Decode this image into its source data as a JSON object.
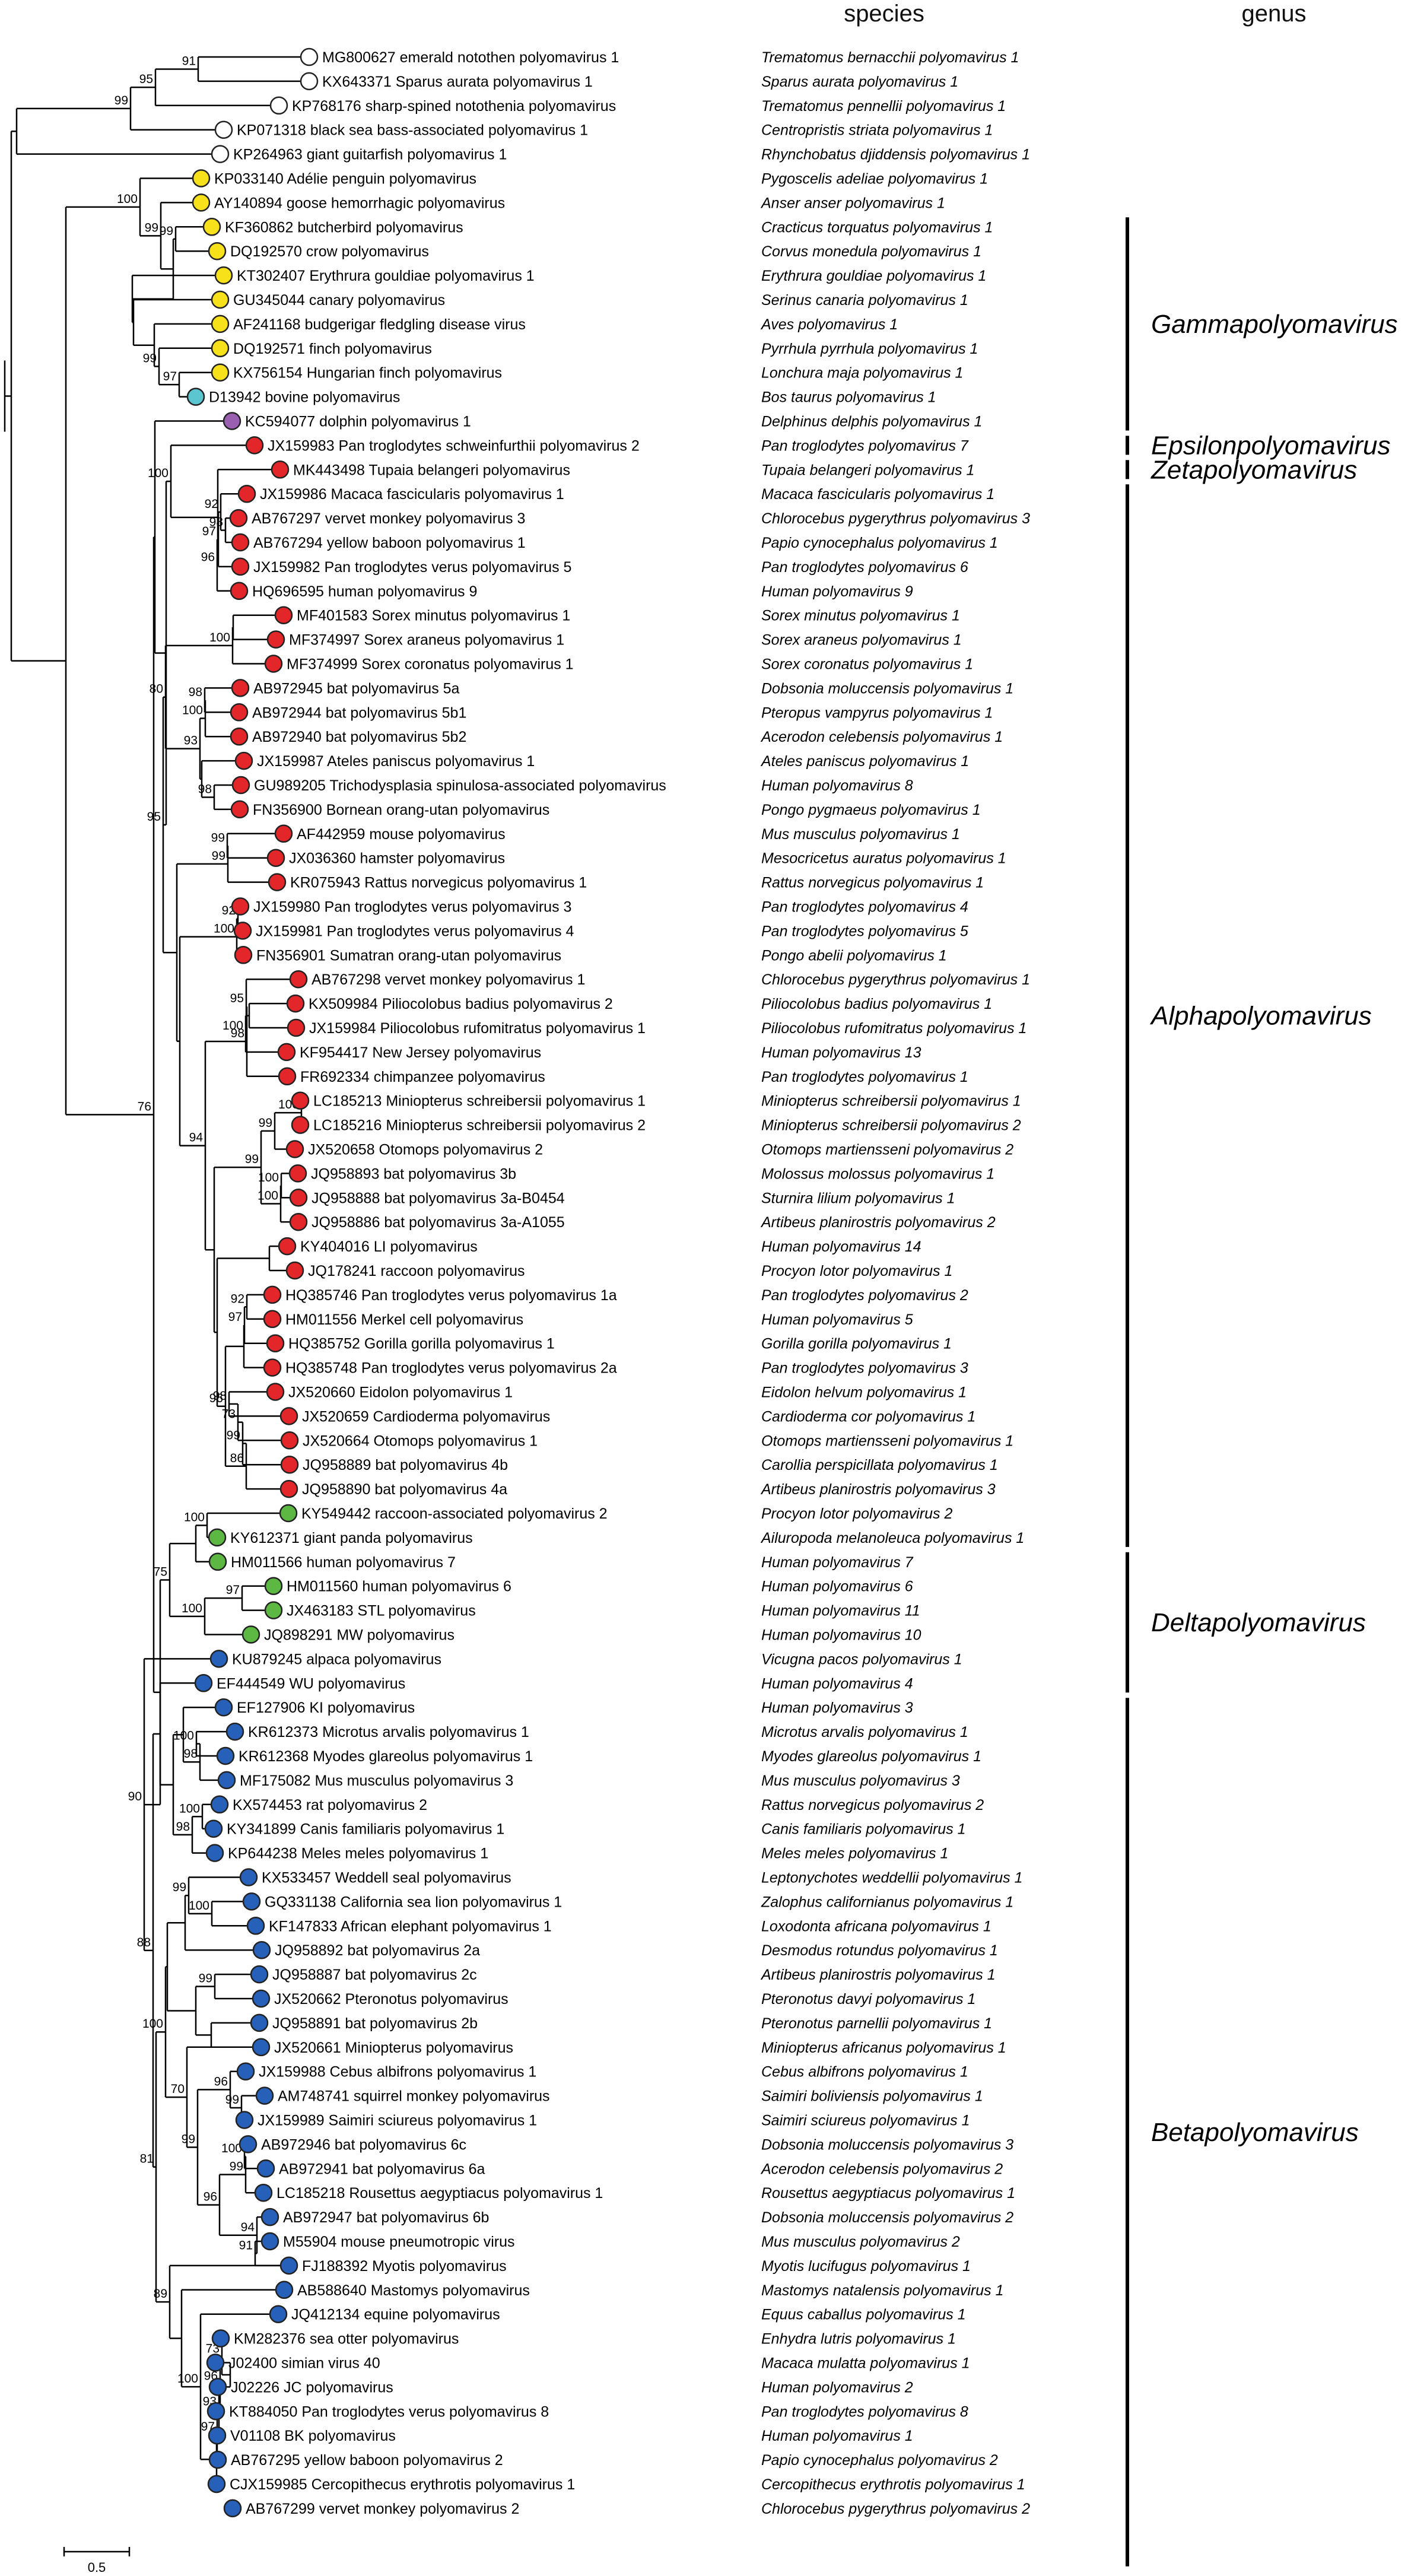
{
  "header": {
    "species": "species",
    "genus": "genus"
  },
  "colors": {
    "white": "#ffffff",
    "yellow": "#f7e11a",
    "cyan": "#5cc6d0",
    "purple": "#9a5fb0",
    "red": "#e3262a",
    "green": "#5cb842",
    "blue": "#2760b8"
  },
  "scale_bar": {
    "label": "0.5"
  },
  "genera": [
    {
      "name": "Gammapolyomavirus",
      "from": 7,
      "to": 15
    },
    {
      "name": "Epsilonpolyomavirus",
      "from": 16,
      "to": 16
    },
    {
      "name": "Zetapolyomavirus",
      "from": 17,
      "to": 17
    },
    {
      "name": "Alphapolyomavirus",
      "from": 18,
      "to": 61
    },
    {
      "name": "Deltapolyomavirus",
      "from": 62,
      "to": 67
    },
    {
      "name": "Betapolyomavirus",
      "from": 68,
      "to": 103
    }
  ],
  "taxa": [
    {
      "label": "MG800627 emerald notothen polyomavirus 1",
      "species": "Trematomus bernacchii polyomavirus 1",
      "color": "white"
    },
    {
      "label": "KX643371 Sparus aurata polyomavirus 1",
      "species": "Sparus aurata polyomavirus 1",
      "color": "white"
    },
    {
      "label": "KP768176 sharp-spined notothenia polyomavirus",
      "species": "Trematomus pennellii polyomavirus 1",
      "color": "white"
    },
    {
      "label": "KP071318 black sea bass-associated polyomavirus 1",
      "species": "Centropristis striata polyomavirus 1",
      "color": "white"
    },
    {
      "label": "KP264963 giant guitarfish polyomavirus 1",
      "species": "Rhynchobatus djiddensis polyomavirus 1",
      "color": "white"
    },
    {
      "label": "KP033140 Adélie penguin polyomavirus",
      "species": "Pygoscelis adeliae polyomavirus 1",
      "color": "yellow"
    },
    {
      "label": "AY140894 goose hemorrhagic polyomavirus",
      "species": "Anser anser polyomavirus 1",
      "color": "yellow"
    },
    {
      "label": "KF360862 butcherbird polyomavirus",
      "species": "Cracticus torquatus polyomavirus 1",
      "color": "yellow"
    },
    {
      "label": "DQ192570 crow polyomavirus",
      "species": "Corvus monedula polyomavirus 1",
      "color": "yellow"
    },
    {
      "label": "KT302407 Erythrura gouldiae polyomavirus 1",
      "species": "Erythrura gouldiae polyomavirus 1",
      "color": "yellow"
    },
    {
      "label": "GU345044 canary polyomavirus",
      "species": "Serinus canaria polyomavirus 1",
      "color": "yellow"
    },
    {
      "label": "AF241168 budgerigar fledgling disease virus",
      "species": "Aves polyomavirus 1",
      "color": "yellow"
    },
    {
      "label": "DQ192571 finch polyomavirus",
      "species": "Pyrrhula pyrrhula polyomavirus 1",
      "color": "yellow"
    },
    {
      "label": "KX756154 Hungarian finch polyomavirus",
      "species": "Lonchura maja polyomavirus 1",
      "color": "yellow"
    },
    {
      "label": "D13942 bovine polyomavirus",
      "species": "Bos taurus polyomavirus 1",
      "color": "cyan"
    },
    {
      "label": "KC594077 dolphin polyomavirus 1",
      "species": "Delphinus delphis polyomavirus 1",
      "color": "purple"
    },
    {
      "label": "JX159983 Pan troglodytes schweinfurthii polyomavirus 2",
      "species": "Pan troglodytes polyomavirus 7",
      "color": "red"
    },
    {
      "label": "MK443498 Tupaia belangeri polyomavirus",
      "species": "Tupaia belangeri polyomavirus 1",
      "color": "red"
    },
    {
      "label": "JX159986 Macaca fascicularis polyomavirus 1",
      "species": "Macaca fascicularis polyomavirus 1",
      "color": "red"
    },
    {
      "label": "AB767297 vervet monkey polyomavirus 3",
      "species": "Chlorocebus pygerythrus polyomavirus 3",
      "color": "red"
    },
    {
      "label": "AB767294 yellow baboon polyomavirus 1",
      "species": "Papio cynocephalus polyomavirus 1",
      "color": "red"
    },
    {
      "label": "JX159982 Pan troglodytes verus polyomavirus 5",
      "species": "Pan troglodytes polyomavirus 6",
      "color": "red"
    },
    {
      "label": "HQ696595 human polyomavirus 9",
      "species": "Human polyomavirus 9",
      "color": "red"
    },
    {
      "label": "MF401583 Sorex minutus polyomavirus 1",
      "species": "Sorex minutus polyomavirus 1",
      "color": "red"
    },
    {
      "label": "MF374997 Sorex araneus polyomavirus 1",
      "species": "Sorex araneus polyomavirus 1",
      "color": "red"
    },
    {
      "label": "MF374999 Sorex coronatus polyomavirus 1",
      "species": "Sorex coronatus polyomavirus 1",
      "color": "red"
    },
    {
      "label": "AB972945 bat polyomavirus 5a",
      "species": "Dobsonia moluccensis polyomavirus 1",
      "color": "red"
    },
    {
      "label": "AB972944 bat polyomavirus 5b1",
      "species": "Pteropus vampyrus polyomavirus 1",
      "color": "red"
    },
    {
      "label": "AB972940 bat polyomavirus 5b2",
      "species": "Acerodon celebensis polyomavirus 1",
      "color": "red"
    },
    {
      "label": "JX159987 Ateles paniscus polyomavirus 1",
      "species": "Ateles paniscus polyomavirus 1",
      "color": "red"
    },
    {
      "label": "GU989205 Trichodysplasia spinulosa-associated polyomavirus",
      "species": "Human polyomavirus 8",
      "color": "red"
    },
    {
      "label": "FN356900 Bornean orang-utan polyomavirus",
      "species": "Pongo pygmaeus polyomavirus 1",
      "color": "red"
    },
    {
      "label": "AF442959 mouse polyomavirus",
      "species": "Mus musculus polyomavirus 1",
      "color": "red"
    },
    {
      "label": "JX036360 hamster polyomavirus",
      "species": "Mesocricetus auratus polyomavirus 1",
      "color": "red"
    },
    {
      "label": "KR075943 Rattus norvegicus polyomavirus 1",
      "species": "Rattus norvegicus polyomavirus 1",
      "color": "red"
    },
    {
      "label": "JX159980 Pan troglodytes verus polyomavirus 3",
      "species": "Pan troglodytes polyomavirus 4",
      "color": "red"
    },
    {
      "label": "JX159981 Pan troglodytes verus polyomavirus 4",
      "species": "Pan troglodytes polyomavirus 5",
      "color": "red"
    },
    {
      "label": "FN356901 Sumatran orang-utan polyomavirus",
      "species": "Pongo abelii polyomavirus 1",
      "color": "red"
    },
    {
      "label": "AB767298 vervet monkey polyomavirus 1",
      "species": "Chlorocebus pygerythrus polyomavirus 1",
      "color": "red"
    },
    {
      "label": "KX509984 Piliocolobus badius polyomavirus 2",
      "species": "Piliocolobus badius polyomavirus 1",
      "color": "red"
    },
    {
      "label": "JX159984 Piliocolobus rufomitratus polyomavirus 1",
      "species": "Piliocolobus rufomitratus polyomavirus 1",
      "color": "red"
    },
    {
      "label": "KF954417 New Jersey polyomavirus",
      "species": "Human polyomavirus 13",
      "color": "red"
    },
    {
      "label": "FR692334 chimpanzee polyomavirus",
      "species": "Pan troglodytes polyomavirus 1",
      "color": "red"
    },
    {
      "label": "LC185213 Miniopterus schreibersii polyomavirus 1",
      "species": "Miniopterus schreibersii polyomavirus 1",
      "color": "red"
    },
    {
      "label": "LC185216 Miniopterus schreibersii polyomavirus 2",
      "species": "Miniopterus schreibersii polyomavirus 2",
      "color": "red"
    },
    {
      "label": "JX520658 Otomops polyomavirus 2",
      "species": "Otomops martiensseni polyomavirus 2",
      "color": "red"
    },
    {
      "label": "JQ958893 bat polyomavirus 3b",
      "species": "Molossus molossus polyomavirus 1",
      "color": "red"
    },
    {
      "label": "JQ958888 bat polyomavirus 3a-B0454",
      "species": "Sturnira lilium polyomavirus 1",
      "color": "red"
    },
    {
      "label": "JQ958886 bat polyomavirus 3a-A1055",
      "species": "Artibeus planirostris polyomavirus 2",
      "color": "red"
    },
    {
      "label": "KY404016 LI polyomavirus",
      "species": "Human polyomavirus 14",
      "color": "red"
    },
    {
      "label": "JQ178241 raccoon polyomavirus",
      "species": "Procyon lotor polyomavirus 1",
      "color": "red"
    },
    {
      "label": "HQ385746 Pan troglodytes verus polyomavirus 1a",
      "species": "Pan troglodytes polyomavirus 2",
      "color": "red"
    },
    {
      "label": "HM011556 Merkel cell polyomavirus",
      "species": "Human polyomavirus 5",
      "color": "red"
    },
    {
      "label": "HQ385752 Gorilla gorilla polyomavirus 1",
      "species": "Gorilla gorilla polyomavirus 1",
      "color": "red"
    },
    {
      "label": "HQ385748 Pan troglodytes verus polyomavirus 2a",
      "species": "Pan troglodytes polyomavirus 3",
      "color": "red"
    },
    {
      "label": "JX520660 Eidolon polyomavirus 1",
      "species": "Eidolon helvum polyomavirus 1",
      "color": "red"
    },
    {
      "label": "JX520659 Cardioderma polyomavirus",
      "species": "Cardioderma cor polyomavirus 1",
      "color": "red"
    },
    {
      "label": "JX520664 Otomops polyomavirus 1",
      "species": "Otomops martiensseni polyomavirus 1",
      "color": "red"
    },
    {
      "label": "JQ958889 bat polyomavirus 4b",
      "species": "Carollia perspicillata polyomavirus 1",
      "color": "red"
    },
    {
      "label": "JQ958890 bat polyomavirus 4a",
      "species": "Artibeus planirostris polyomavirus 3",
      "color": "red"
    },
    {
      "label": "KY549442 raccoon-associated polyomavirus 2",
      "species": "Procyon lotor polyomavirus 2",
      "color": "green"
    },
    {
      "label": "KY612371 giant panda polyomavirus",
      "species": "Ailuropoda melanoleuca polyomavirus 1",
      "color": "green"
    },
    {
      "label": "HM011566 human polyomavirus 7",
      "species": "Human polyomavirus 7",
      "color": "green"
    },
    {
      "label": "HM011560 human polyomavirus 6",
      "species": "Human polyomavirus 6",
      "color": "green"
    },
    {
      "label": "JX463183 STL polyomavirus",
      "species": "Human polyomavirus 11",
      "color": "green"
    },
    {
      "label": "JQ898291 MW polyomavirus",
      "species": "Human polyomavirus 10",
      "color": "green"
    },
    {
      "label": "KU879245 alpaca polyomavirus",
      "species": "Vicugna pacos polyomavirus 1",
      "color": "blue"
    },
    {
      "label": "EF444549 WU polyomavirus",
      "species": "Human polyomavirus 4",
      "color": "blue"
    },
    {
      "label": "EF127906 KI polyomavirus",
      "species": "Human polyomavirus 3",
      "color": "blue"
    },
    {
      "label": "KR612373 Microtus arvalis polyomavirus 1",
      "species": "Microtus arvalis polyomavirus 1",
      "color": "blue"
    },
    {
      "label": "KR612368 Myodes glareolus polyomavirus 1",
      "species": "Myodes glareolus polyomavirus 1",
      "color": "blue"
    },
    {
      "label": "MF175082 Mus musculus polyomavirus 3",
      "species": "Mus musculus polyomavirus 3",
      "color": "blue"
    },
    {
      "label": "KX574453 rat polyomavirus 2",
      "species": "Rattus norvegicus polyomavirus 2",
      "color": "blue"
    },
    {
      "label": "KY341899 Canis familiaris polyomavirus 1",
      "species": "Canis familiaris polyomavirus 1",
      "color": "blue"
    },
    {
      "label": "KP644238 Meles meles polyomavirus 1",
      "species": "Meles meles polyomavirus 1",
      "color": "blue"
    },
    {
      "label": "KX533457 Weddell seal polyomavirus",
      "species": "Leptonychotes weddellii polyomavirus 1",
      "color": "blue"
    },
    {
      "label": "GQ331138 California sea lion polyomavirus 1",
      "species": "Zalophus californianus polyomavirus 1",
      "color": "blue"
    },
    {
      "label": "KF147833 African elephant polyomavirus 1",
      "species": "Loxodonta africana polyomavirus 1",
      "color": "blue"
    },
    {
      "label": "JQ958892 bat polyomavirus 2a",
      "species": "Desmodus rotundus polyomavirus 1",
      "color": "blue"
    },
    {
      "label": "JQ958887 bat polyomavirus 2c",
      "species": "Artibeus planirostris polyomavirus 1",
      "color": "blue"
    },
    {
      "label": "JX520662 Pteronotus polyomavirus",
      "species": "Pteronotus davyi polyomavirus 1",
      "color": "blue"
    },
    {
      "label": "JQ958891 bat polyomavirus 2b",
      "species": "Pteronotus parnellii polyomavirus 1",
      "color": "blue"
    },
    {
      "label": "JX520661 Miniopterus polyomavirus",
      "species": "Miniopterus africanus polyomavirus 1",
      "color": "blue"
    },
    {
      "label": "JX159988 Cebus albifrons polyomavirus 1",
      "species": "Cebus albifrons polyomavirus 1",
      "color": "blue"
    },
    {
      "label": "AM748741 squirrel monkey polyomavirus",
      "species": "Saimiri boliviensis polyomavirus 1",
      "color": "blue"
    },
    {
      "label": "JX159989 Saimiri sciureus polyomavirus 1",
      "species": "Saimiri sciureus polyomavirus 1",
      "color": "blue"
    },
    {
      "label": "AB972946 bat polyomavirus 6c",
      "species": "Dobsonia moluccensis polyomavirus 3",
      "color": "blue"
    },
    {
      "label": "AB972941 bat polyomavirus 6a",
      "species": "Acerodon celebensis polyomavirus 2",
      "color": "blue"
    },
    {
      "label": "LC185218 Rousettus aegyptiacus polyomavirus 1",
      "species": "Rousettus aegyptiacus polyomavirus 1",
      "color": "blue"
    },
    {
      "label": "AB972947 bat polyomavirus 6b",
      "species": "Dobsonia moluccensis polyomavirus 2",
      "color": "blue"
    },
    {
      "label": "M55904 mouse pneumotropic virus",
      "species": "Mus musculus polyomavirus 2",
      "color": "blue"
    },
    {
      "label": "FJ188392 Myotis polyomavirus",
      "species": "Myotis lucifugus polyomavirus 1",
      "color": "blue"
    },
    {
      "label": "AB588640 Mastomys polyomavirus",
      "species": "Mastomys natalensis polyomavirus 1",
      "color": "blue"
    },
    {
      "label": "JQ412134 equine polyomavirus",
      "species": "Equus caballus polyomavirus 1",
      "color": "blue"
    },
    {
      "label": "KM282376 sea otter polyomavirus",
      "species": "Enhydra lutris polyomavirus 1",
      "color": "blue"
    },
    {
      "label": "J02400 simian virus 40",
      "species": "Macaca mulatta polyomavirus 1",
      "color": "blue"
    },
    {
      "label": "J02226 JC polyomavirus",
      "species": "Human polyomavirus 2",
      "color": "blue"
    },
    {
      "label": "KT884050 Pan troglodytes verus polyomavirus 8",
      "species": "Pan troglodytes polyomavirus 8",
      "color": "blue"
    },
    {
      "label": "V01108 BK polyomavirus",
      "species": "Human polyomavirus 1",
      "color": "blue"
    },
    {
      "label": "AB767295 yellow baboon polyomavirus 2",
      "species": "Papio cynocephalus polyomavirus 2",
      "color": "blue"
    },
    {
      "label": "CJX159985 Cercopithecus erythrotis polyomavirus 1",
      "species": "Cercopithecus erythrotis polyomavirus 1",
      "color": "blue"
    },
    {
      "label": "AB767299 vervet monkey polyomavirus 2",
      "species": "Chlorocebus pygerythrus polyomavirus 2",
      "color": "blue"
    }
  ],
  "bootstrap_labels": [
    "91",
    "95",
    "99",
    "100",
    "99",
    "99",
    "99",
    "97",
    "99",
    "100",
    "92",
    "98",
    "97",
    "96",
    "100",
    "100",
    "93",
    "98",
    "80",
    "99",
    "98",
    "77",
    "99",
    "99",
    "100",
    "88",
    "100",
    "92",
    "95",
    "100",
    "98",
    "94",
    "99",
    "100",
    "100",
    "99",
    "100",
    "92",
    "97",
    "96",
    "86",
    "99",
    "73",
    "98",
    "95",
    "99",
    "76",
    "100",
    "75",
    "100",
    "97",
    "100",
    "98",
    "100",
    "98",
    "100",
    "99",
    "100",
    "99",
    "81",
    "88",
    "99",
    "99",
    "96",
    "99",
    "100",
    "94",
    "96",
    "90",
    "91",
    "70",
    "89",
    "100",
    "97",
    "93",
    "96",
    "73"
  ]
}
